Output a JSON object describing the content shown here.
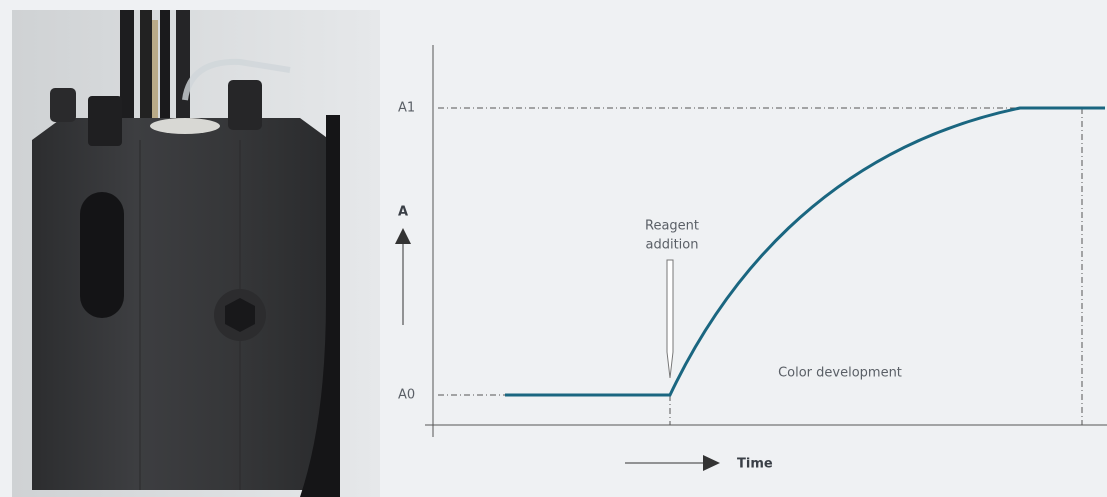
{
  "axis": {
    "y_label": "A",
    "x_label": "Time",
    "levels": [
      "A1",
      "A0"
    ]
  },
  "annotations": {
    "reagent": [
      "Reagent",
      "addition"
    ],
    "development": "Color development"
  }
}
